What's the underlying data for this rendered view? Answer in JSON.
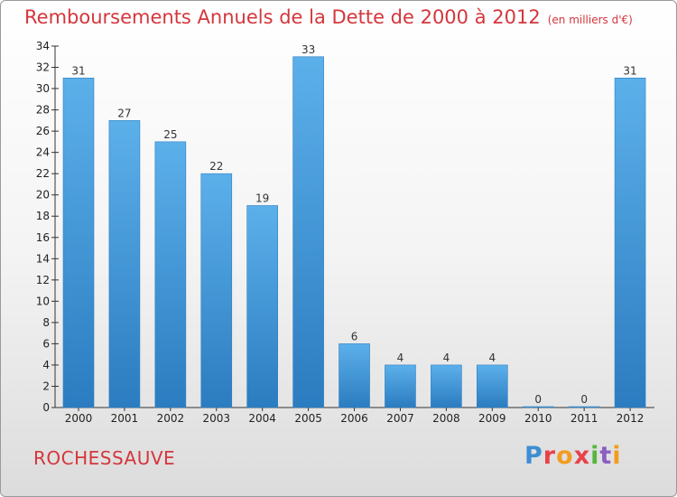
{
  "chart_data": {
    "type": "bar",
    "title": "Remboursements Annuels de la Dette de 2000 à 2012",
    "subtitle": "(en milliers d'€)",
    "categories": [
      "2000",
      "2001",
      "2002",
      "2003",
      "2004",
      "2005",
      "2006",
      "2007",
      "2008",
      "2009",
      "2010",
      "2011",
      "2012"
    ],
    "values": [
      31,
      27,
      25,
      22,
      19,
      33,
      6,
      4,
      4,
      4,
      0,
      0,
      31
    ],
    "ylim": [
      0,
      34
    ],
    "yticks": [
      0,
      2,
      4,
      6,
      8,
      10,
      12,
      14,
      16,
      18,
      20,
      22,
      24,
      26,
      28,
      30,
      32,
      34
    ],
    "grid": false,
    "bar_color": "#4a9fdf"
  },
  "footer": {
    "location": "ROCHESSAUVE",
    "logo_letters": [
      "P",
      "r",
      "o",
      "x",
      "i",
      "t",
      "i"
    ]
  }
}
